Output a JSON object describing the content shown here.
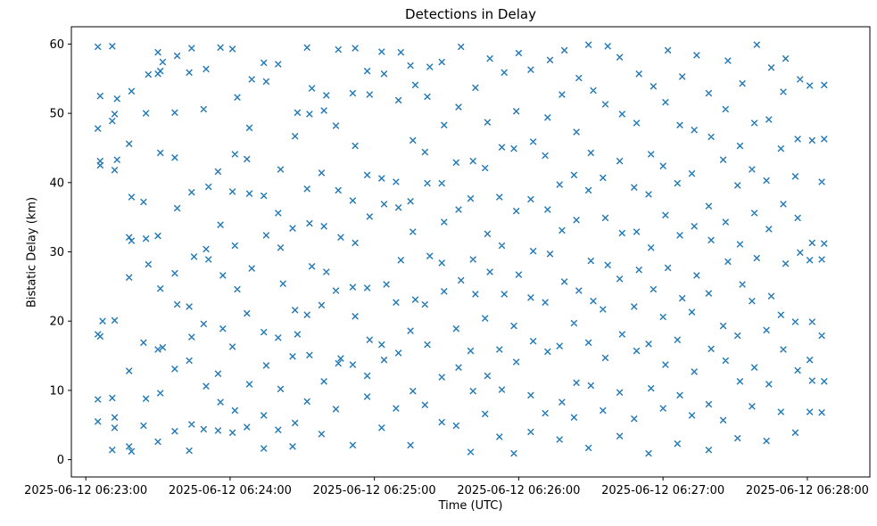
{
  "chart_data": {
    "type": "scatter",
    "title": "Detections in Delay",
    "xlabel": "Time (UTC)",
    "ylabel": "Bistatic Delay (km)",
    "marker": "x",
    "marker_color": "#1f77b4",
    "x_unit": "seconds after 2025-06-12 06:23:00 UTC",
    "xlim": [
      -6,
      326
    ],
    "ylim": [
      -2.5,
      62.5
    ],
    "x_ticks": [
      0,
      60,
      120,
      180,
      240,
      300
    ],
    "x_tick_labels": [
      "2025-06-12 06:23:00",
      "2025-06-12 06:24:00",
      "2025-06-12 06:25:00",
      "2025-06-12 06:26:00",
      "2025-06-12 06:27:00",
      "2025-06-12 06:28:00"
    ],
    "y_ticks": [
      0,
      10,
      20,
      30,
      40,
      50,
      60
    ],
    "grid": false,
    "legend": false,
    "points": [
      [
        5,
        5.5
      ],
      [
        5,
        8.7
      ],
      [
        6,
        17.8
      ],
      [
        5,
        18.1
      ],
      [
        6,
        42.5
      ],
      [
        6,
        43.1
      ],
      [
        5,
        47.8
      ],
      [
        6,
        52.5
      ],
      [
        5,
        59.6
      ],
      [
        7,
        20.0
      ],
      [
        11,
        1.4
      ],
      [
        12,
        4.6
      ],
      [
        12,
        6.1
      ],
      [
        11,
        8.9
      ],
      [
        12,
        41.8
      ],
      [
        13,
        43.3
      ],
      [
        11,
        48.9
      ],
      [
        12,
        49.9
      ],
      [
        13,
        52.1
      ],
      [
        11,
        59.7
      ],
      [
        12,
        20.1
      ],
      [
        18,
        12.8
      ],
      [
        19,
        1.2
      ],
      [
        18,
        1.9
      ],
      [
        19,
        31.6
      ],
      [
        18,
        32.1
      ],
      [
        19,
        37.9
      ],
      [
        18,
        45.6
      ],
      [
        19,
        53.2
      ],
      [
        18,
        26.3
      ],
      [
        24,
        4.9
      ],
      [
        25,
        8.8
      ],
      [
        24,
        16.9
      ],
      [
        26,
        28.2
      ],
      [
        25,
        31.9
      ],
      [
        24,
        37.2
      ],
      [
        25,
        50.0
      ],
      [
        26,
        55.6
      ],
      [
        30,
        2.6
      ],
      [
        31,
        9.6
      ],
      [
        30,
        15.9
      ],
      [
        32,
        16.2
      ],
      [
        31,
        24.7
      ],
      [
        30,
        32.3
      ],
      [
        31,
        44.3
      ],
      [
        30,
        55.7
      ],
      [
        31,
        56.1
      ],
      [
        32,
        57.4
      ],
      [
        30,
        58.8
      ],
      [
        37,
        4.1
      ],
      [
        37,
        13.1
      ],
      [
        38,
        22.4
      ],
      [
        37,
        26.9
      ],
      [
        38,
        36.3
      ],
      [
        37,
        43.6
      ],
      [
        38,
        58.3
      ],
      [
        37,
        50.1
      ],
      [
        43,
        1.3
      ],
      [
        44,
        5.1
      ],
      [
        43,
        14.3
      ],
      [
        44,
        17.7
      ],
      [
        43,
        22.1
      ],
      [
        45,
        29.3
      ],
      [
        44,
        38.6
      ],
      [
        43,
        55.9
      ],
      [
        44,
        59.4
      ],
      [
        49,
        4.4
      ],
      [
        50,
        10.6
      ],
      [
        49,
        19.6
      ],
      [
        50,
        30.4
      ],
      [
        51,
        39.4
      ],
      [
        49,
        50.6
      ],
      [
        50,
        56.4
      ],
      [
        51,
        28.9
      ],
      [
        55,
        4.2
      ],
      [
        56,
        8.3
      ],
      [
        55,
        12.4
      ],
      [
        57,
        26.6
      ],
      [
        56,
        33.9
      ],
      [
        55,
        41.6
      ],
      [
        56,
        59.5
      ],
      [
        57,
        18.9
      ],
      [
        61,
        3.9
      ],
      [
        62,
        7.1
      ],
      [
        61,
        16.3
      ],
      [
        63,
        24.6
      ],
      [
        62,
        30.9
      ],
      [
        61,
        38.7
      ],
      [
        62,
        44.1
      ],
      [
        63,
        52.3
      ],
      [
        61,
        59.3
      ],
      [
        67,
        4.7
      ],
      [
        68,
        10.9
      ],
      [
        67,
        21.1
      ],
      [
        69,
        27.6
      ],
      [
        68,
        38.4
      ],
      [
        67,
        43.4
      ],
      [
        68,
        47.9
      ],
      [
        69,
        54.9
      ],
      [
        74,
        1.6
      ],
      [
        74,
        6.4
      ],
      [
        75,
        13.6
      ],
      [
        74,
        18.4
      ],
      [
        75,
        32.4
      ],
      [
        74,
        38.1
      ],
      [
        75,
        54.6
      ],
      [
        74,
        57.3
      ],
      [
        80,
        4.3
      ],
      [
        81,
        10.2
      ],
      [
        80,
        17.6
      ],
      [
        82,
        25.4
      ],
      [
        81,
        30.6
      ],
      [
        80,
        35.6
      ],
      [
        81,
        41.9
      ],
      [
        80,
        57.1
      ],
      [
        86,
        1.9
      ],
      [
        87,
        5.3
      ],
      [
        86,
        14.9
      ],
      [
        88,
        18.1
      ],
      [
        87,
        21.6
      ],
      [
        86,
        33.4
      ],
      [
        87,
        46.7
      ],
      [
        88,
        50.1
      ],
      [
        92,
        8.4
      ],
      [
        93,
        15.1
      ],
      [
        92,
        20.9
      ],
      [
        94,
        27.9
      ],
      [
        93,
        34.1
      ],
      [
        92,
        39.1
      ],
      [
        93,
        49.9
      ],
      [
        94,
        53.6
      ],
      [
        92,
        59.5
      ],
      [
        98,
        3.7
      ],
      [
        99,
        11.3
      ],
      [
        98,
        22.3
      ],
      [
        100,
        27.1
      ],
      [
        99,
        33.7
      ],
      [
        98,
        41.4
      ],
      [
        99,
        50.4
      ],
      [
        100,
        52.6
      ],
      [
        104,
        7.3
      ],
      [
        105,
        13.9
      ],
      [
        104,
        24.4
      ],
      [
        106,
        32.1
      ],
      [
        105,
        38.9
      ],
      [
        104,
        48.2
      ],
      [
        105,
        59.2
      ],
      [
        106,
        14.6
      ],
      [
        111,
        2.1
      ],
      [
        111,
        13.7
      ],
      [
        112,
        20.7
      ],
      [
        111,
        24.9
      ],
      [
        112,
        31.3
      ],
      [
        111,
        37.4
      ],
      [
        112,
        45.3
      ],
      [
        111,
        52.9
      ],
      [
        112,
        59.4
      ],
      [
        117,
        9.1
      ],
      [
        117,
        12.1
      ],
      [
        118,
        17.3
      ],
      [
        117,
        24.8
      ],
      [
        118,
        35.1
      ],
      [
        117,
        41.1
      ],
      [
        118,
        52.7
      ],
      [
        117,
        56.1
      ],
      [
        123,
        4.6
      ],
      [
        124,
        14.4
      ],
      [
        123,
        16.6
      ],
      [
        125,
        25.3
      ],
      [
        124,
        36.9
      ],
      [
        123,
        40.6
      ],
      [
        124,
        55.7
      ],
      [
        123,
        58.9
      ],
      [
        129,
        7.4
      ],
      [
        130,
        15.4
      ],
      [
        129,
        22.7
      ],
      [
        131,
        28.8
      ],
      [
        130,
        36.4
      ],
      [
        129,
        40.1
      ],
      [
        130,
        51.9
      ],
      [
        131,
        58.8
      ],
      [
        135,
        2.1
      ],
      [
        136,
        9.9
      ],
      [
        135,
        18.6
      ],
      [
        137,
        23.1
      ],
      [
        136,
        32.9
      ],
      [
        135,
        37.3
      ],
      [
        136,
        46.1
      ],
      [
        137,
        54.1
      ],
      [
        135,
        56.9
      ],
      [
        141,
        7.9
      ],
      [
        142,
        16.6
      ],
      [
        141,
        22.4
      ],
      [
        143,
        29.4
      ],
      [
        142,
        39.9
      ],
      [
        141,
        44.4
      ],
      [
        142,
        52.4
      ],
      [
        143,
        56.7
      ],
      [
        148,
        5.4
      ],
      [
        148,
        11.9
      ],
      [
        149,
        24.3
      ],
      [
        148,
        28.4
      ],
      [
        149,
        34.3
      ],
      [
        148,
        39.9
      ],
      [
        149,
        48.3
      ],
      [
        148,
        57.4
      ],
      [
        154,
        4.9
      ],
      [
        155,
        13.3
      ],
      [
        154,
        18.9
      ],
      [
        156,
        25.9
      ],
      [
        155,
        36.1
      ],
      [
        154,
        42.9
      ],
      [
        155,
        50.9
      ],
      [
        156,
        59.6
      ],
      [
        160,
        1.1
      ],
      [
        161,
        9.9
      ],
      [
        160,
        15.7
      ],
      [
        162,
        23.9
      ],
      [
        161,
        28.9
      ],
      [
        160,
        37.7
      ],
      [
        161,
        43.1
      ],
      [
        162,
        53.7
      ],
      [
        166,
        6.6
      ],
      [
        167,
        12.1
      ],
      [
        166,
        20.4
      ],
      [
        168,
        27.1
      ],
      [
        167,
        32.6
      ],
      [
        166,
        42.1
      ],
      [
        167,
        48.7
      ],
      [
        168,
        57.9
      ],
      [
        172,
        3.3
      ],
      [
        173,
        10.1
      ],
      [
        172,
        15.9
      ],
      [
        174,
        23.9
      ],
      [
        173,
        30.9
      ],
      [
        172,
        37.9
      ],
      [
        173,
        45.1
      ],
      [
        174,
        55.9
      ],
      [
        178,
        0.9
      ],
      [
        179,
        14.1
      ],
      [
        178,
        19.3
      ],
      [
        180,
        26.7
      ],
      [
        179,
        35.9
      ],
      [
        178,
        44.9
      ],
      [
        179,
        50.3
      ],
      [
        180,
        58.7
      ],
      [
        185,
        4.0
      ],
      [
        185,
        9.3
      ],
      [
        186,
        17.1
      ],
      [
        185,
        23.4
      ],
      [
        186,
        30.1
      ],
      [
        185,
        37.6
      ],
      [
        186,
        45.9
      ],
      [
        185,
        56.3
      ],
      [
        191,
        6.7
      ],
      [
        192,
        15.6
      ],
      [
        191,
        22.7
      ],
      [
        193,
        29.7
      ],
      [
        192,
        36.1
      ],
      [
        191,
        43.9
      ],
      [
        192,
        49.4
      ],
      [
        193,
        57.7
      ],
      [
        197,
        2.9
      ],
      [
        198,
        8.3
      ],
      [
        197,
        16.4
      ],
      [
        199,
        25.7
      ],
      [
        198,
        33.1
      ],
      [
        197,
        39.7
      ],
      [
        198,
        52.7
      ],
      [
        199,
        59.1
      ],
      [
        203,
        6.1
      ],
      [
        204,
        11.1
      ],
      [
        203,
        19.7
      ],
      [
        205,
        24.4
      ],
      [
        204,
        34.6
      ],
      [
        203,
        41.1
      ],
      [
        204,
        47.3
      ],
      [
        205,
        55.1
      ],
      [
        209,
        1.7
      ],
      [
        210,
        10.7
      ],
      [
        209,
        16.9
      ],
      [
        211,
        22.9
      ],
      [
        210,
        28.7
      ],
      [
        209,
        38.9
      ],
      [
        210,
        44.3
      ],
      [
        211,
        53.3
      ],
      [
        209,
        59.9
      ],
      [
        215,
        7.1
      ],
      [
        216,
        14.7
      ],
      [
        215,
        21.7
      ],
      [
        217,
        28.1
      ],
      [
        216,
        34.9
      ],
      [
        215,
        40.7
      ],
      [
        216,
        51.3
      ],
      [
        217,
        59.7
      ],
      [
        222,
        3.4
      ],
      [
        222,
        9.7
      ],
      [
        223,
        18.1
      ],
      [
        222,
        26.1
      ],
      [
        223,
        32.7
      ],
      [
        222,
        43.1
      ],
      [
        223,
        49.9
      ],
      [
        222,
        58.1
      ],
      [
        228,
        5.9
      ],
      [
        229,
        15.7
      ],
      [
        228,
        22.1
      ],
      [
        230,
        27.4
      ],
      [
        229,
        32.9
      ],
      [
        228,
        39.3
      ],
      [
        229,
        48.6
      ],
      [
        230,
        55.7
      ],
      [
        234,
        0.9
      ],
      [
        235,
        10.3
      ],
      [
        234,
        16.7
      ],
      [
        236,
        24.6
      ],
      [
        235,
        30.6
      ],
      [
        234,
        38.3
      ],
      [
        235,
        44.1
      ],
      [
        236,
        53.9
      ],
      [
        240,
        7.4
      ],
      [
        241,
        13.7
      ],
      [
        240,
        20.6
      ],
      [
        242,
        27.7
      ],
      [
        241,
        35.3
      ],
      [
        240,
        42.4
      ],
      [
        241,
        51.6
      ],
      [
        242,
        59.1
      ],
      [
        246,
        2.3
      ],
      [
        247,
        9.3
      ],
      [
        246,
        17.3
      ],
      [
        248,
        23.3
      ],
      [
        247,
        32.4
      ],
      [
        246,
        39.9
      ],
      [
        247,
        48.3
      ],
      [
        248,
        55.3
      ],
      [
        252,
        6.4
      ],
      [
        253,
        12.7
      ],
      [
        252,
        21.3
      ],
      [
        254,
        26.6
      ],
      [
        253,
        33.7
      ],
      [
        252,
        41.3
      ],
      [
        253,
        47.6
      ],
      [
        254,
        58.4
      ],
      [
        259,
        1.4
      ],
      [
        259,
        8.0
      ],
      [
        260,
        16.0
      ],
      [
        259,
        24.0
      ],
      [
        260,
        31.7
      ],
      [
        259,
        36.6
      ],
      [
        260,
        46.6
      ],
      [
        259,
        52.9
      ],
      [
        265,
        5.7
      ],
      [
        266,
        14.3
      ],
      [
        265,
        19.3
      ],
      [
        267,
        28.6
      ],
      [
        266,
        34.3
      ],
      [
        265,
        43.3
      ],
      [
        266,
        50.6
      ],
      [
        267,
        57.6
      ],
      [
        271,
        3.1
      ],
      [
        272,
        11.3
      ],
      [
        271,
        17.9
      ],
      [
        273,
        25.3
      ],
      [
        272,
        31.1
      ],
      [
        271,
        39.6
      ],
      [
        272,
        45.3
      ],
      [
        273,
        54.3
      ],
      [
        277,
        7.7
      ],
      [
        278,
        13.3
      ],
      [
        277,
        22.9
      ],
      [
        279,
        29.1
      ],
      [
        278,
        35.6
      ],
      [
        277,
        41.9
      ],
      [
        278,
        48.6
      ],
      [
        279,
        59.9
      ],
      [
        283,
        2.7
      ],
      [
        284,
        10.9
      ],
      [
        283,
        18.7
      ],
      [
        285,
        23.6
      ],
      [
        284,
        33.3
      ],
      [
        283,
        40.3
      ],
      [
        284,
        49.1
      ],
      [
        285,
        56.6
      ],
      [
        289,
        6.9
      ],
      [
        290,
        15.9
      ],
      [
        289,
        20.9
      ],
      [
        291,
        28.3
      ],
      [
        290,
        36.9
      ],
      [
        289,
        44.9
      ],
      [
        290,
        53.1
      ],
      [
        291,
        57.9
      ],
      [
        295,
        3.9
      ],
      [
        296,
        12.9
      ],
      [
        295,
        19.9
      ],
      [
        297,
        29.9
      ],
      [
        296,
        34.9
      ],
      [
        295,
        40.9
      ],
      [
        296,
        46.3
      ],
      [
        297,
        54.9
      ],
      [
        301,
        6.9
      ],
      [
        302,
        11.4
      ],
      [
        301,
        14.4
      ],
      [
        302,
        19.9
      ],
      [
        301,
        28.8
      ],
      [
        302,
        46.1
      ],
      [
        301,
        54.0
      ],
      [
        302,
        31.3
      ],
      [
        306,
        17.9
      ],
      [
        307,
        46.3
      ],
      [
        306,
        28.9
      ],
      [
        307,
        54.1
      ],
      [
        306,
        6.8
      ],
      [
        307,
        11.3
      ],
      [
        306,
        40.1
      ],
      [
        307,
        31.2
      ]
    ]
  }
}
